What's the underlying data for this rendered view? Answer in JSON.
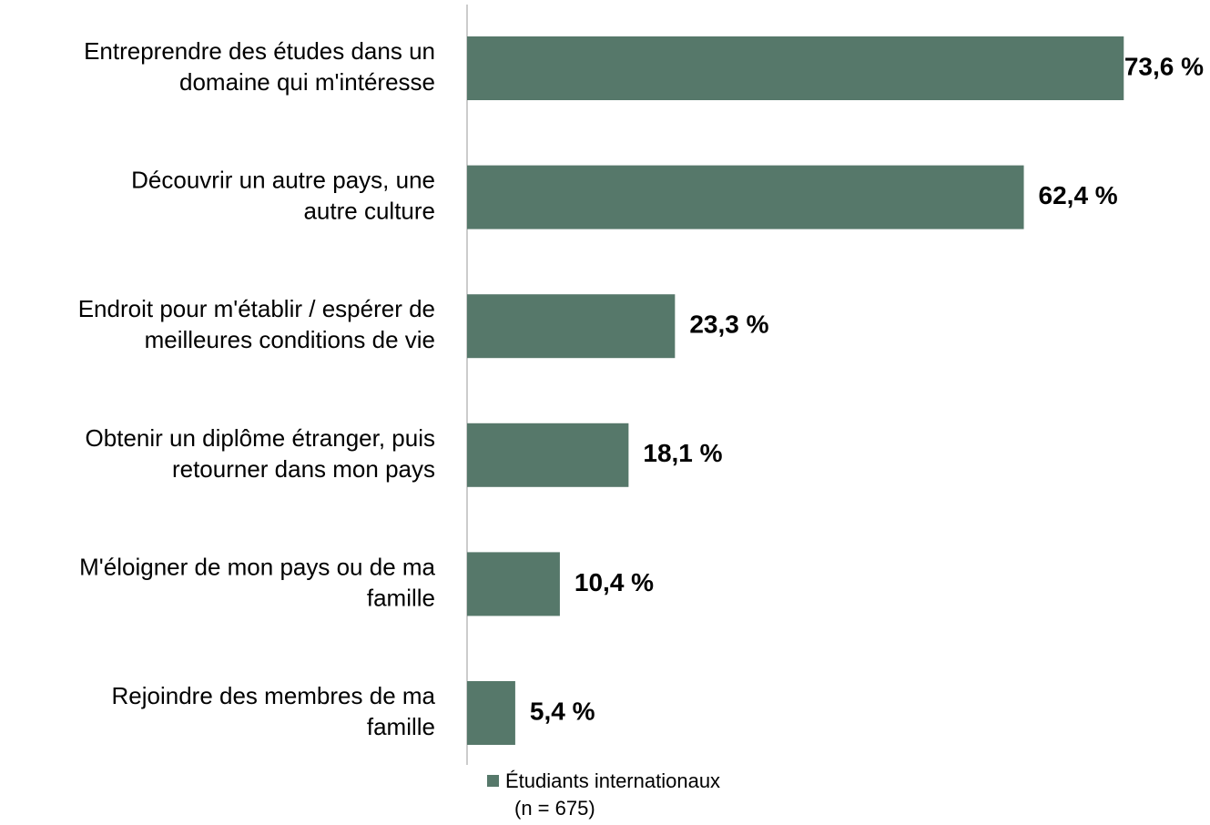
{
  "chart_data": {
    "type": "bar",
    "orientation": "horizontal",
    "categories": [
      "Entreprendre des études dans un\ndomaine qui m'intéresse",
      "Découvrir un autre pays, une\nautre culture",
      "Endroit pour m'établir / espérer de\nmeilleures conditions de vie",
      "Obtenir un diplôme étranger, puis\nretourner dans mon pays",
      "M'éloigner de mon pays ou de ma\nfamille",
      "Rejoindre des membres de ma\nfamille"
    ],
    "series": [
      {
        "name": "Étudiants internationaux",
        "color": "#56786a",
        "values": [
          73.6,
          62.4,
          23.3,
          18.1,
          10.4,
          5.4
        ],
        "value_labels": [
          "73,6 %",
          "62,4 %",
          "23,3 %",
          "18,1 %",
          "10,4 %",
          "5,4 %"
        ]
      }
    ],
    "legend_note": "(n =  675)",
    "xlim": [
      0,
      80
    ]
  }
}
